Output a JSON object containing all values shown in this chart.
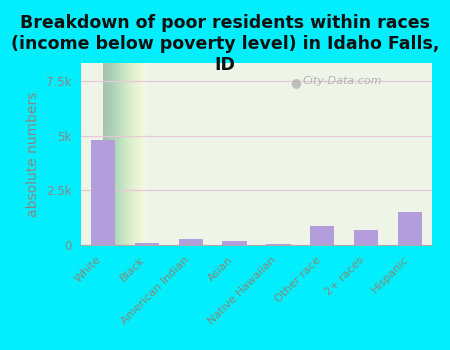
{
  "categories": [
    "White",
    "Black",
    "American Indian",
    "Asian",
    "Native Hawaiian",
    "Other race",
    "2+ races",
    "Hispanic"
  ],
  "values": [
    4800,
    100,
    280,
    170,
    50,
    850,
    680,
    1500
  ],
  "bar_color": "#b39ddb",
  "title": "Breakdown of poor residents within races\n(income below poverty level) in Idaho Falls,\nID",
  "ylabel": "absolute numbers",
  "ylim": [
    0,
    8333
  ],
  "yticks": [
    0,
    2500,
    5000,
    7500
  ],
  "ytick_labels": [
    "0",
    "2.5k",
    "5k",
    "7.5k"
  ],
  "background_outer": "#00eeff",
  "plot_bg_color": "#eef5e8",
  "grid_color": "#e8c8d8",
  "watermark": "City-Data.com",
  "title_fontsize": 12.5,
  "ylabel_fontsize": 10,
  "tick_color": "#888888",
  "xtick_color": "#888877"
}
